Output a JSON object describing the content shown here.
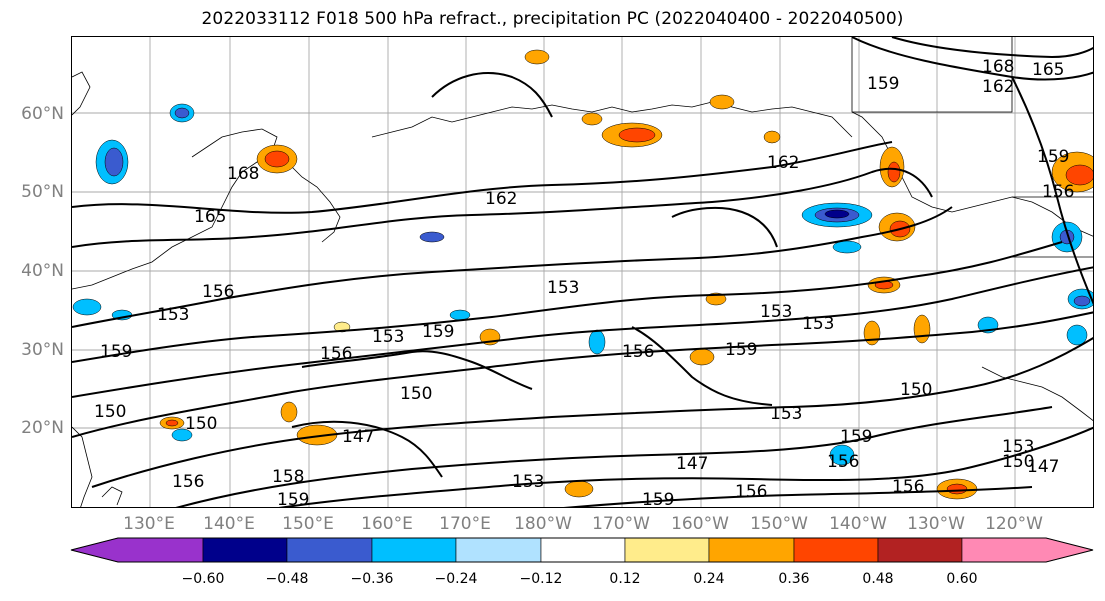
{
  "title": "2022033112 F018 500 hPa refract., precipitation PC (2022040400 - 2022040500)",
  "lat_labels": [
    "60°N",
    "50°N",
    "40°N",
    "30°N",
    "20°N"
  ],
  "lon_labels": [
    "130°E",
    "140°E",
    "150°E",
    "160°E",
    "170°E",
    "180°W",
    "170°W",
    "160°W",
    "150°W",
    "140°W",
    "130°W",
    "120°W"
  ],
  "contour_labels": [
    "168",
    "165",
    "162",
    "159",
    "168",
    "165",
    "162",
    "162",
    "159",
    "156",
    "153",
    "153",
    "156",
    "153",
    "159",
    "159",
    "156",
    "159",
    "153",
    "153",
    "150",
    "150",
    "150",
    "150",
    "153",
    "147",
    "156",
    "159",
    "153",
    "156",
    "147",
    "159",
    "156",
    "159",
    "156",
    "153",
    "150",
    "147",
    "158",
    "156"
  ],
  "colorbar": {
    "ticks": [
      "−0.60",
      "−0.48",
      "−0.36",
      "−0.24",
      "−0.12",
      "0.12",
      "0.24",
      "0.36",
      "0.48",
      "0.60"
    ],
    "colors": [
      "#9932cc",
      "#00008b",
      "#3a5bcf",
      "#00bfff",
      "#b0e2ff",
      "#ffffff",
      "#ffec8b",
      "#ffa500",
      "#ff4500",
      "#b22222",
      "#ff89b4"
    ]
  }
}
